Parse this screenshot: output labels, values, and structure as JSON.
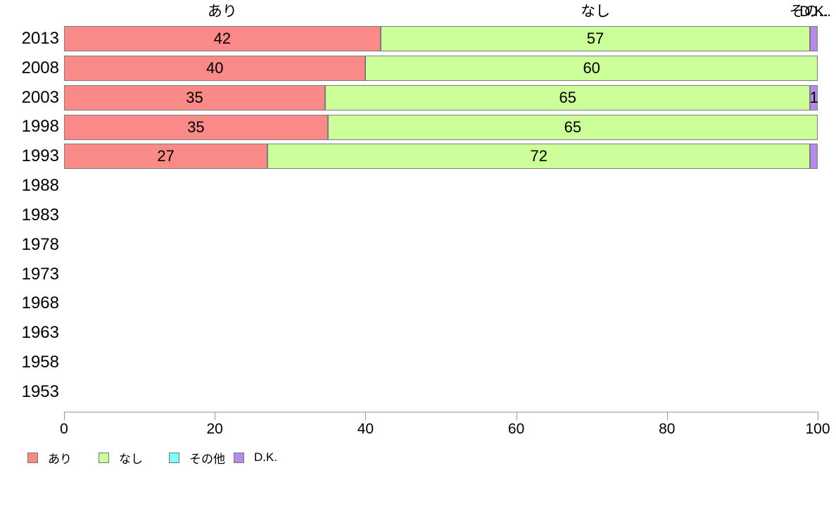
{
  "chart_data": {
    "type": "bar",
    "orientation": "horizontal",
    "stacked": true,
    "title": "",
    "xlabel": "",
    "ylabel": "",
    "grid": false,
    "x_axis": {
      "min": 0,
      "max": 100,
      "ticks": [
        0,
        20,
        40,
        60,
        80,
        100
      ]
    },
    "categories": [
      "2013",
      "2008",
      "2003",
      "1998",
      "1993",
      "1988",
      "1983",
      "1978",
      "1973",
      "1968",
      "1963",
      "1958",
      "1953"
    ],
    "series": [
      {
        "name": "あり",
        "color": "#fa8a87",
        "values": [
          42,
          40,
          35,
          35,
          27,
          null,
          null,
          null,
          null,
          null,
          null,
          null,
          null
        ],
        "value_labels": [
          42,
          40,
          35,
          35,
          27,
          null,
          null,
          null,
          null,
          null,
          null,
          null,
          null
        ]
      },
      {
        "name": "なし",
        "color": "#ccff99",
        "values": [
          57,
          60,
          65,
          65,
          72,
          null,
          null,
          null,
          null,
          null,
          null,
          null,
          null
        ],
        "value_labels": [
          57,
          60,
          65,
          65,
          72,
          null,
          null,
          null,
          null,
          null,
          null,
          null,
          null
        ]
      },
      {
        "name": "その他",
        "color": "#80ffff",
        "values": [
          0,
          0,
          0,
          0,
          0,
          null,
          null,
          null,
          null,
          null,
          null,
          null,
          null
        ],
        "value_labels": [
          null,
          null,
          null,
          null,
          null,
          null,
          null,
          null,
          null,
          null,
          null,
          null,
          null
        ]
      },
      {
        "name": "D.K.",
        "color": "#b48be6",
        "values": [
          1,
          0,
          1,
          0,
          1,
          null,
          null,
          null,
          null,
          null,
          null,
          null,
          null
        ],
        "value_labels": [
          null,
          null,
          1,
          null,
          null,
          null,
          null,
          null,
          null,
          null,
          null,
          null,
          null
        ]
      }
    ],
    "column_headers": [
      "あり",
      "なし",
      "その...",
      "D.K."
    ],
    "legend": {
      "position": "bottom",
      "items": [
        {
          "label": "あり",
          "color": "#fa8a87"
        },
        {
          "label": "なし",
          "color": "#ccff99"
        },
        {
          "label": "その他",
          "color": "#80ffff"
        },
        {
          "label": "D.K.",
          "color": "#b48be6"
        }
      ]
    }
  }
}
